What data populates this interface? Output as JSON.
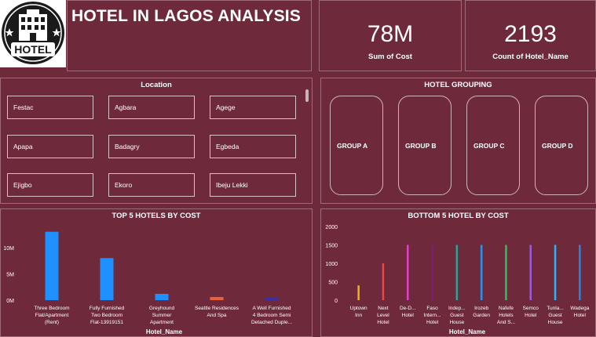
{
  "header": {
    "title": "HOTEL IN LAGOS ANALYSIS",
    "logo_text": "HOTEL"
  },
  "kpis": [
    {
      "value": "78M",
      "label": "Sum of Cost"
    },
    {
      "value": "2193",
      "label": "Count of Hotel_Name"
    }
  ],
  "location_slicer": {
    "title": "Location",
    "items": [
      "Festac",
      "Agbara",
      "Agege",
      "Apapa",
      "Badagry",
      "Egbeda",
      "Ejigbo",
      "Ekoro",
      "Ibeju Lekki"
    ]
  },
  "hotel_grouping": {
    "title": "HOTEL GROUPING",
    "groups": [
      "GROUP A",
      "GROUP B",
      "GROUP C",
      "GROUP D"
    ]
  },
  "colors": {
    "background": "#6e2a3b",
    "top5_bar": "#1e90ff",
    "bottom5_palette": [
      "#e8b520",
      "#e8474b",
      "#e040c8",
      "#7a1f7a",
      "#26a69a",
      "#2196f3",
      "#2ec05a",
      "#9c5bd8",
      "#29b6f6",
      "#1e88e5"
    ]
  },
  "chart_data": [
    {
      "type": "bar",
      "title": "TOP 5 HOTELS BY COST",
      "xlabel": "Hotel_Name",
      "ylabel": "",
      "ylim": [
        0,
        14
      ],
      "y_ticks": [
        0,
        5,
        10
      ],
      "y_tick_labels": [
        "0M",
        "5M",
        "10M"
      ],
      "categories": [
        [
          "Three Bedroom",
          "Flat/Apartment",
          "(Rent)"
        ],
        [
          "Fully Furnished",
          "Two Bedroom",
          "Flat-13919151"
        ],
        [
          "Greyhound",
          "Summer",
          "Apartment"
        ],
        [
          "Seattle Residences",
          "And Spa"
        ],
        [
          "A Well Furnished",
          "4 Bedroom Semi",
          "Detached Duple..."
        ]
      ],
      "values": [
        13.0,
        8.0,
        1.2,
        0.6,
        0.5
      ],
      "bar_colors": [
        "#1e90ff",
        "#1e90ff",
        "#1e90ff",
        "#e8613a",
        "#3b2fa0"
      ]
    },
    {
      "type": "bar",
      "title": "BOTTOM 5 HOTEL BY COST",
      "xlabel": "Hotel_Name",
      "ylabel": "",
      "ylim": [
        0,
        2000
      ],
      "y_ticks": [
        0,
        500,
        1000,
        1500,
        2000
      ],
      "y_tick_labels": [
        "0",
        "500",
        "1000",
        "1500",
        "2000"
      ],
      "categories": [
        [
          "Uptown",
          "Inn"
        ],
        [
          "Next",
          "Level",
          "Hotel"
        ],
        [
          "De-D...",
          "Hotel"
        ],
        [
          "Faso",
          "Intern...",
          "Hotel"
        ],
        [
          "Indep...",
          "Guest",
          "House"
        ],
        [
          "Irozeb",
          "Garden"
        ],
        [
          "Nafefe",
          "Hotels",
          "And S..."
        ],
        [
          "Semco",
          "Hotel"
        ],
        [
          "Tunla...",
          "Guest",
          "House"
        ],
        [
          "Wadega",
          "Hotel"
        ]
      ],
      "values": [
        400,
        1000,
        1500,
        1500,
        1500,
        1500,
        1500,
        1500,
        1500,
        1500
      ]
    }
  ]
}
